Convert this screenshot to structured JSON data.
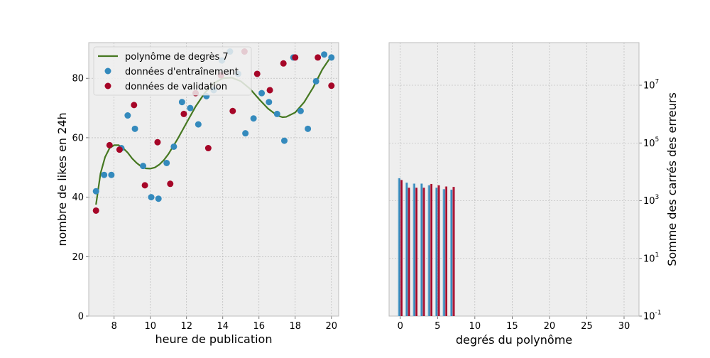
{
  "colors": {
    "background": "#ffffff",
    "axes_face": "#eeeeee",
    "grid": "#b0b0b0",
    "spine": "#bcbcbc",
    "poly_line": "#467821",
    "train": "#348abd",
    "valid": "#a60628"
  },
  "chart_data": [
    {
      "type": "scatter",
      "title": "",
      "xlabel": "heure de publication",
      "ylabel": "nombre de likes en 24h",
      "xlim": [
        6.6,
        20.4
      ],
      "ylim": [
        0,
        92
      ],
      "xticks": [
        8,
        10,
        12,
        14,
        16,
        18,
        20
      ],
      "yticks": [
        0,
        20,
        40,
        60,
        80
      ],
      "grid": true,
      "legend_position": "top-left",
      "legend": {
        "line_label": "polynôme de degrès 7",
        "train_label": "données d'entraînement",
        "valid_label": "données de validation"
      },
      "series": [
        {
          "name": "données d'entraînement",
          "kind": "scatter",
          "points": [
            [
              7.0,
              42
            ],
            [
              7.45,
              47.5
            ],
            [
              7.85,
              47.5
            ],
            [
              8.4,
              56.5
            ],
            [
              8.75,
              67.5
            ],
            [
              9.15,
              63
            ],
            [
              9.6,
              50.5
            ],
            [
              10.05,
              40
            ],
            [
              10.45,
              39.5
            ],
            [
              10.9,
              51.5
            ],
            [
              11.3,
              57
            ],
            [
              11.75,
              72
            ],
            [
              12.2,
              70
            ],
            [
              12.65,
              64.5
            ],
            [
              13.1,
              74
            ],
            [
              13.5,
              76
            ],
            [
              13.95,
              86
            ],
            [
              14.4,
              89
            ],
            [
              14.85,
              81.5
            ],
            [
              15.25,
              61.5
            ],
            [
              15.7,
              66.5
            ],
            [
              16.15,
              75
            ],
            [
              16.55,
              72
            ],
            [
              17.0,
              68
            ],
            [
              17.4,
              59
            ],
            [
              17.9,
              87
            ],
            [
              18.3,
              69
            ],
            [
              18.7,
              63
            ],
            [
              19.15,
              79
            ],
            [
              19.6,
              88
            ],
            [
              20.0,
              87
            ]
          ]
        },
        {
          "name": "données de validation",
          "kind": "scatter",
          "points": [
            [
              7.0,
              35.5
            ],
            [
              7.75,
              57.5
            ],
            [
              8.3,
              56
            ],
            [
              9.1,
              71
            ],
            [
              9.7,
              44
            ],
            [
              10.4,
              58.5
            ],
            [
              11.1,
              44.5
            ],
            [
              11.85,
              68
            ],
            [
              12.5,
              75
            ],
            [
              13.2,
              56.5
            ],
            [
              13.9,
              81
            ],
            [
              14.55,
              69
            ],
            [
              15.2,
              89
            ],
            [
              15.9,
              81.5
            ],
            [
              16.6,
              76
            ],
            [
              17.35,
              85
            ],
            [
              18.0,
              87
            ],
            [
              19.25,
              87
            ],
            [
              20.0,
              77.5
            ]
          ]
        },
        {
          "name": "polynôme de degrès 7",
          "kind": "line",
          "points": [
            [
              7.0,
              37.5
            ],
            [
              7.25,
              48
            ],
            [
              7.5,
              53.5
            ],
            [
              7.75,
              56.5
            ],
            [
              8.0,
              57.5
            ],
            [
              8.25,
              57.5
            ],
            [
              8.5,
              56.5
            ],
            [
              8.75,
              55
            ],
            [
              9.0,
              53
            ],
            [
              9.25,
              51.5
            ],
            [
              9.5,
              50.3
            ],
            [
              9.75,
              49.7
            ],
            [
              10.0,
              49.6
            ],
            [
              10.25,
              50
            ],
            [
              10.5,
              51
            ],
            [
              10.75,
              52.5
            ],
            [
              11.0,
              54.5
            ],
            [
              11.5,
              59.5
            ],
            [
              12.0,
              65
            ],
            [
              12.5,
              70.5
            ],
            [
              13.0,
              75
            ],
            [
              13.5,
              78.3
            ],
            [
              14.0,
              80
            ],
            [
              14.5,
              80.2
            ],
            [
              15.0,
              79
            ],
            [
              15.5,
              76.5
            ],
            [
              16.0,
              73
            ],
            [
              16.5,
              69.8
            ],
            [
              17.0,
              67.5
            ],
            [
              17.3,
              66.9
            ],
            [
              17.5,
              67
            ],
            [
              18.0,
              68.5
            ],
            [
              18.5,
              72
            ],
            [
              19.0,
              77
            ],
            [
              19.5,
              83
            ],
            [
              20.0,
              87.5
            ]
          ]
        }
      ]
    },
    {
      "type": "bar",
      "title": "",
      "xlabel": "degrés du polynôme",
      "ylabel": "Somme des carrés des erreurs",
      "y_scale": "log",
      "xlim": [
        -1.5,
        32
      ],
      "ylim": [
        0.1,
        300000000
      ],
      "xticks": [
        0,
        5,
        10,
        15,
        20,
        25,
        30
      ],
      "yticks": [
        {
          "value": 0.1,
          "base": "10",
          "exp": "-1"
        },
        {
          "value": 10,
          "base": "10",
          "exp": "1"
        },
        {
          "value": 1000,
          "base": "10",
          "exp": "3"
        },
        {
          "value": 100000,
          "base": "10",
          "exp": "5"
        },
        {
          "value": 10000000,
          "base": "10",
          "exp": "7"
        }
      ],
      "grid": true,
      "categories": [
        0,
        1,
        2,
        3,
        4,
        5,
        6,
        7
      ],
      "series": [
        {
          "name": "données d'entraînement",
          "values": [
            6000,
            4200,
            3900,
            3900,
            3400,
            2800,
            2500,
            2400
          ]
        },
        {
          "name": "données de validation",
          "values": [
            5200,
            2800,
            2800,
            2800,
            3800,
            3400,
            3100,
            3000
          ]
        }
      ]
    }
  ]
}
